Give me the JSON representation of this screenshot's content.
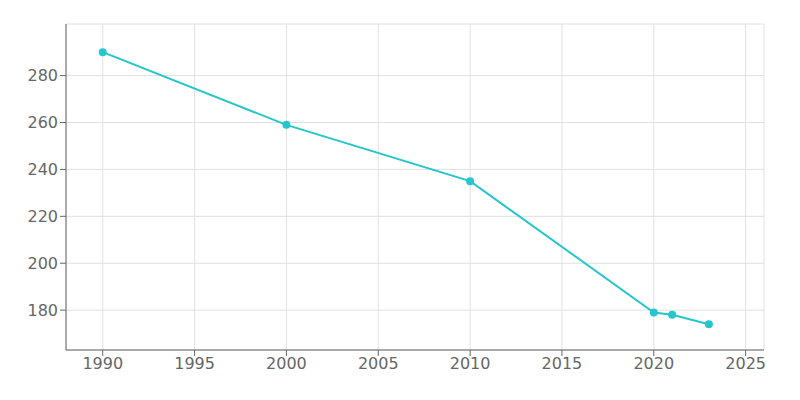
{
  "chart_data": {
    "type": "line",
    "x": [
      1990,
      2000,
      2010,
      2020,
      2021,
      2023
    ],
    "values": [
      290,
      259,
      235,
      179,
      178,
      174
    ],
    "color": "#26c6cc",
    "marker": "o",
    "xlim": [
      1988,
      2026
    ],
    "ylim": [
      163,
      302
    ],
    "xticks": [
      1990,
      1995,
      2000,
      2005,
      2010,
      2015,
      2020,
      2025
    ],
    "yticks": [
      180,
      200,
      220,
      240,
      260,
      280
    ],
    "grid": true
  }
}
